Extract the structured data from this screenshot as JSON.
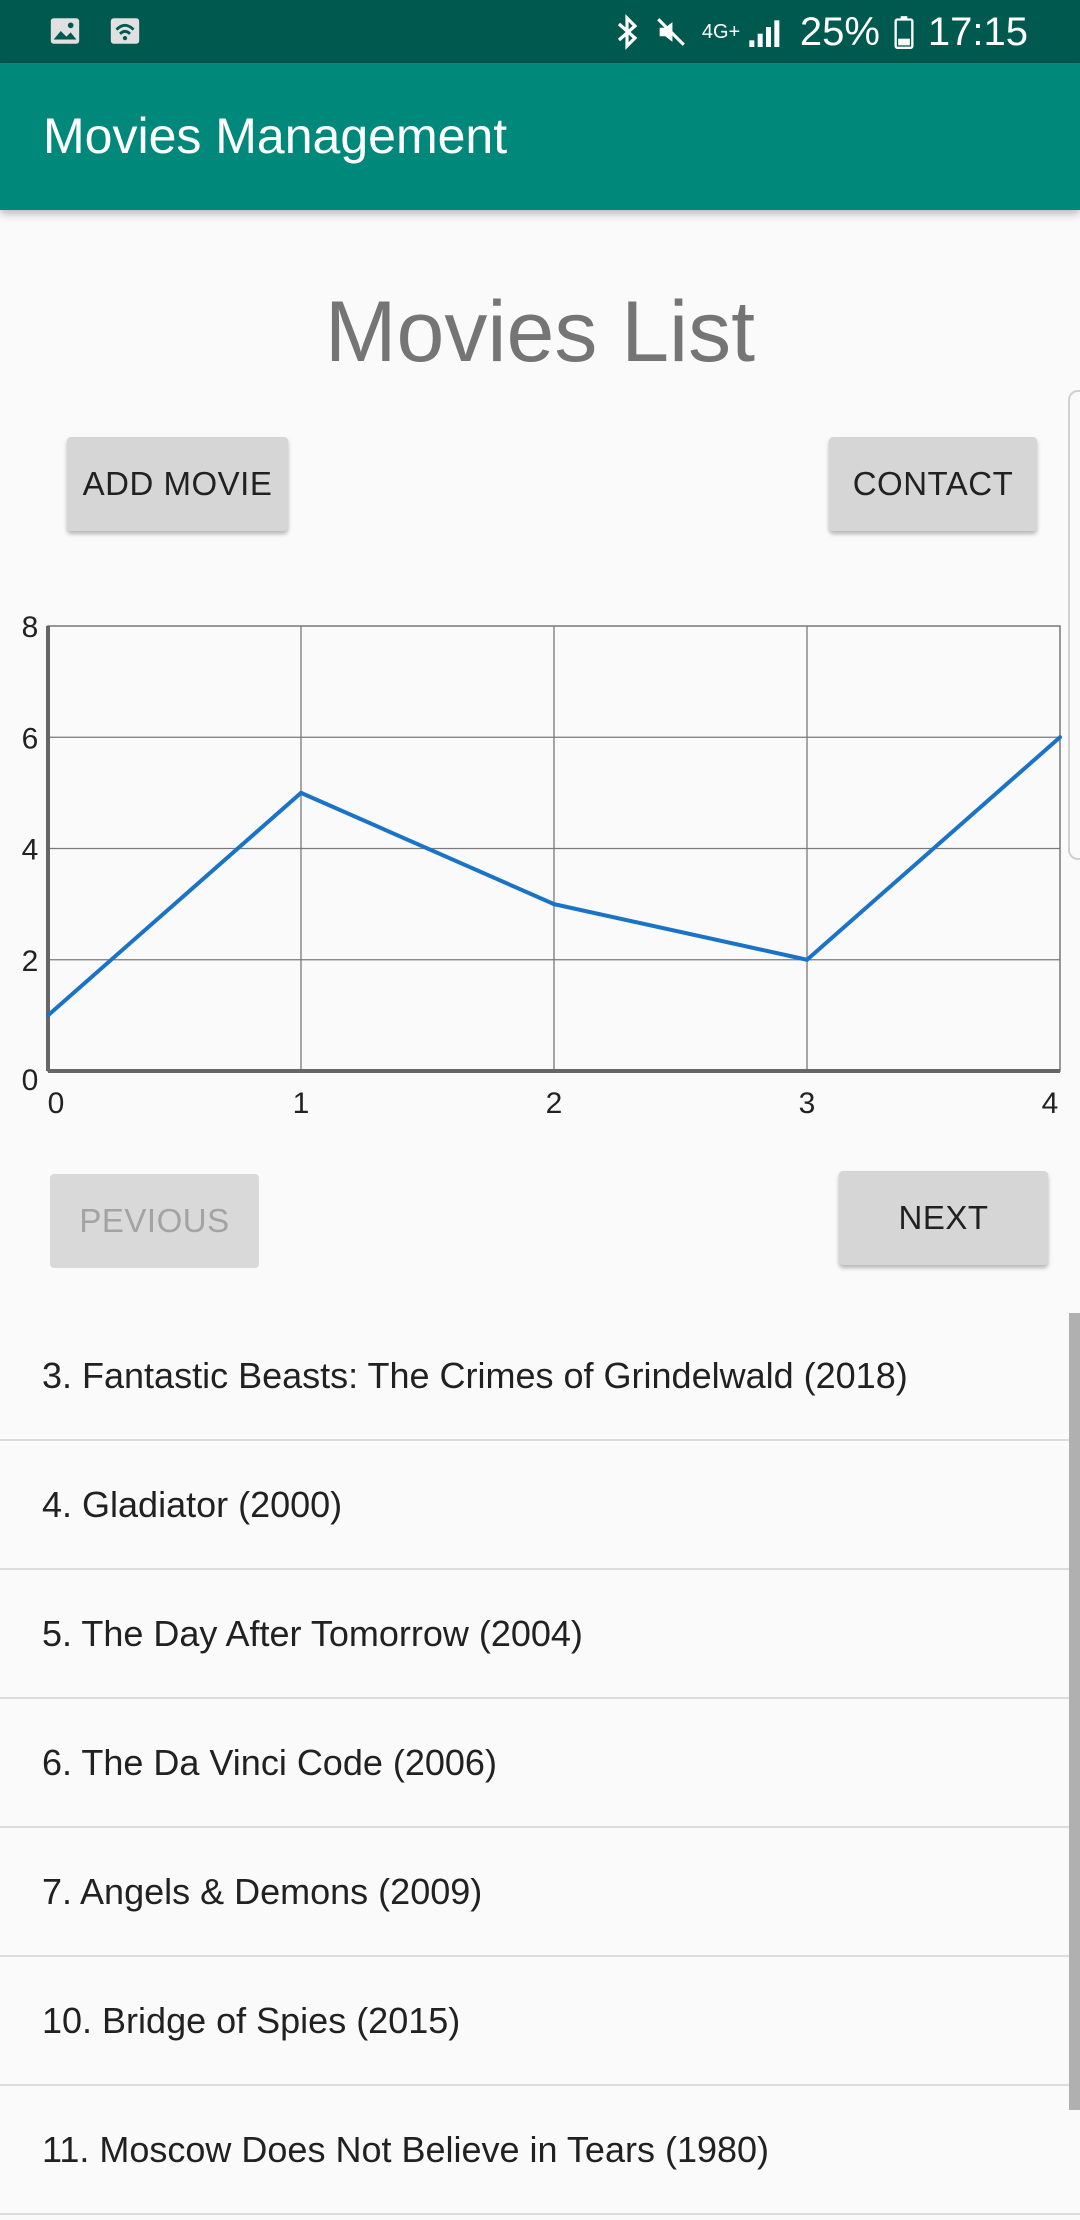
{
  "status_bar": {
    "battery": "25%",
    "time": "17:15",
    "network": "4G+"
  },
  "app_bar": {
    "title": "Movies Management"
  },
  "page": {
    "title": "Movies List"
  },
  "buttons": {
    "add_movie": "ADD MOVIE",
    "contact": "CONTACT",
    "previous": "PEVIOUS",
    "next": "NEXT"
  },
  "chart_data": {
    "type": "line",
    "x": [
      0,
      1,
      2,
      3,
      4
    ],
    "series": [
      {
        "values": [
          1,
          5,
          3,
          2,
          6
        ],
        "color": "#1a73c7"
      }
    ],
    "xlim": [
      0,
      4
    ],
    "ylim": [
      0,
      8
    ],
    "x_ticks": [
      "0",
      "1",
      "2",
      "3",
      "4"
    ],
    "y_ticks": [
      "0",
      "2",
      "4",
      "6",
      "8"
    ],
    "grid": true,
    "title": "",
    "xlabel": "",
    "ylabel": ""
  },
  "movies": [
    "3. Fantastic Beasts: The Crimes of Grindelwald (2018)",
    "4. Gladiator (2000)",
    "5. The Day After Tomorrow (2004)",
    "6. The Da Vinci Code (2006)",
    "7. Angels & Demons (2009)",
    "10. Bridge of Spies (2015)",
    "11. Moscow Does Not Believe in Tears (1980)"
  ],
  "icons": {
    "gallery": "image-icon",
    "wifi": "wifi-icon",
    "bluetooth": "bluetooth-icon",
    "mute": "mute-icon",
    "signal": "signal-icon",
    "battery": "battery-icon"
  }
}
